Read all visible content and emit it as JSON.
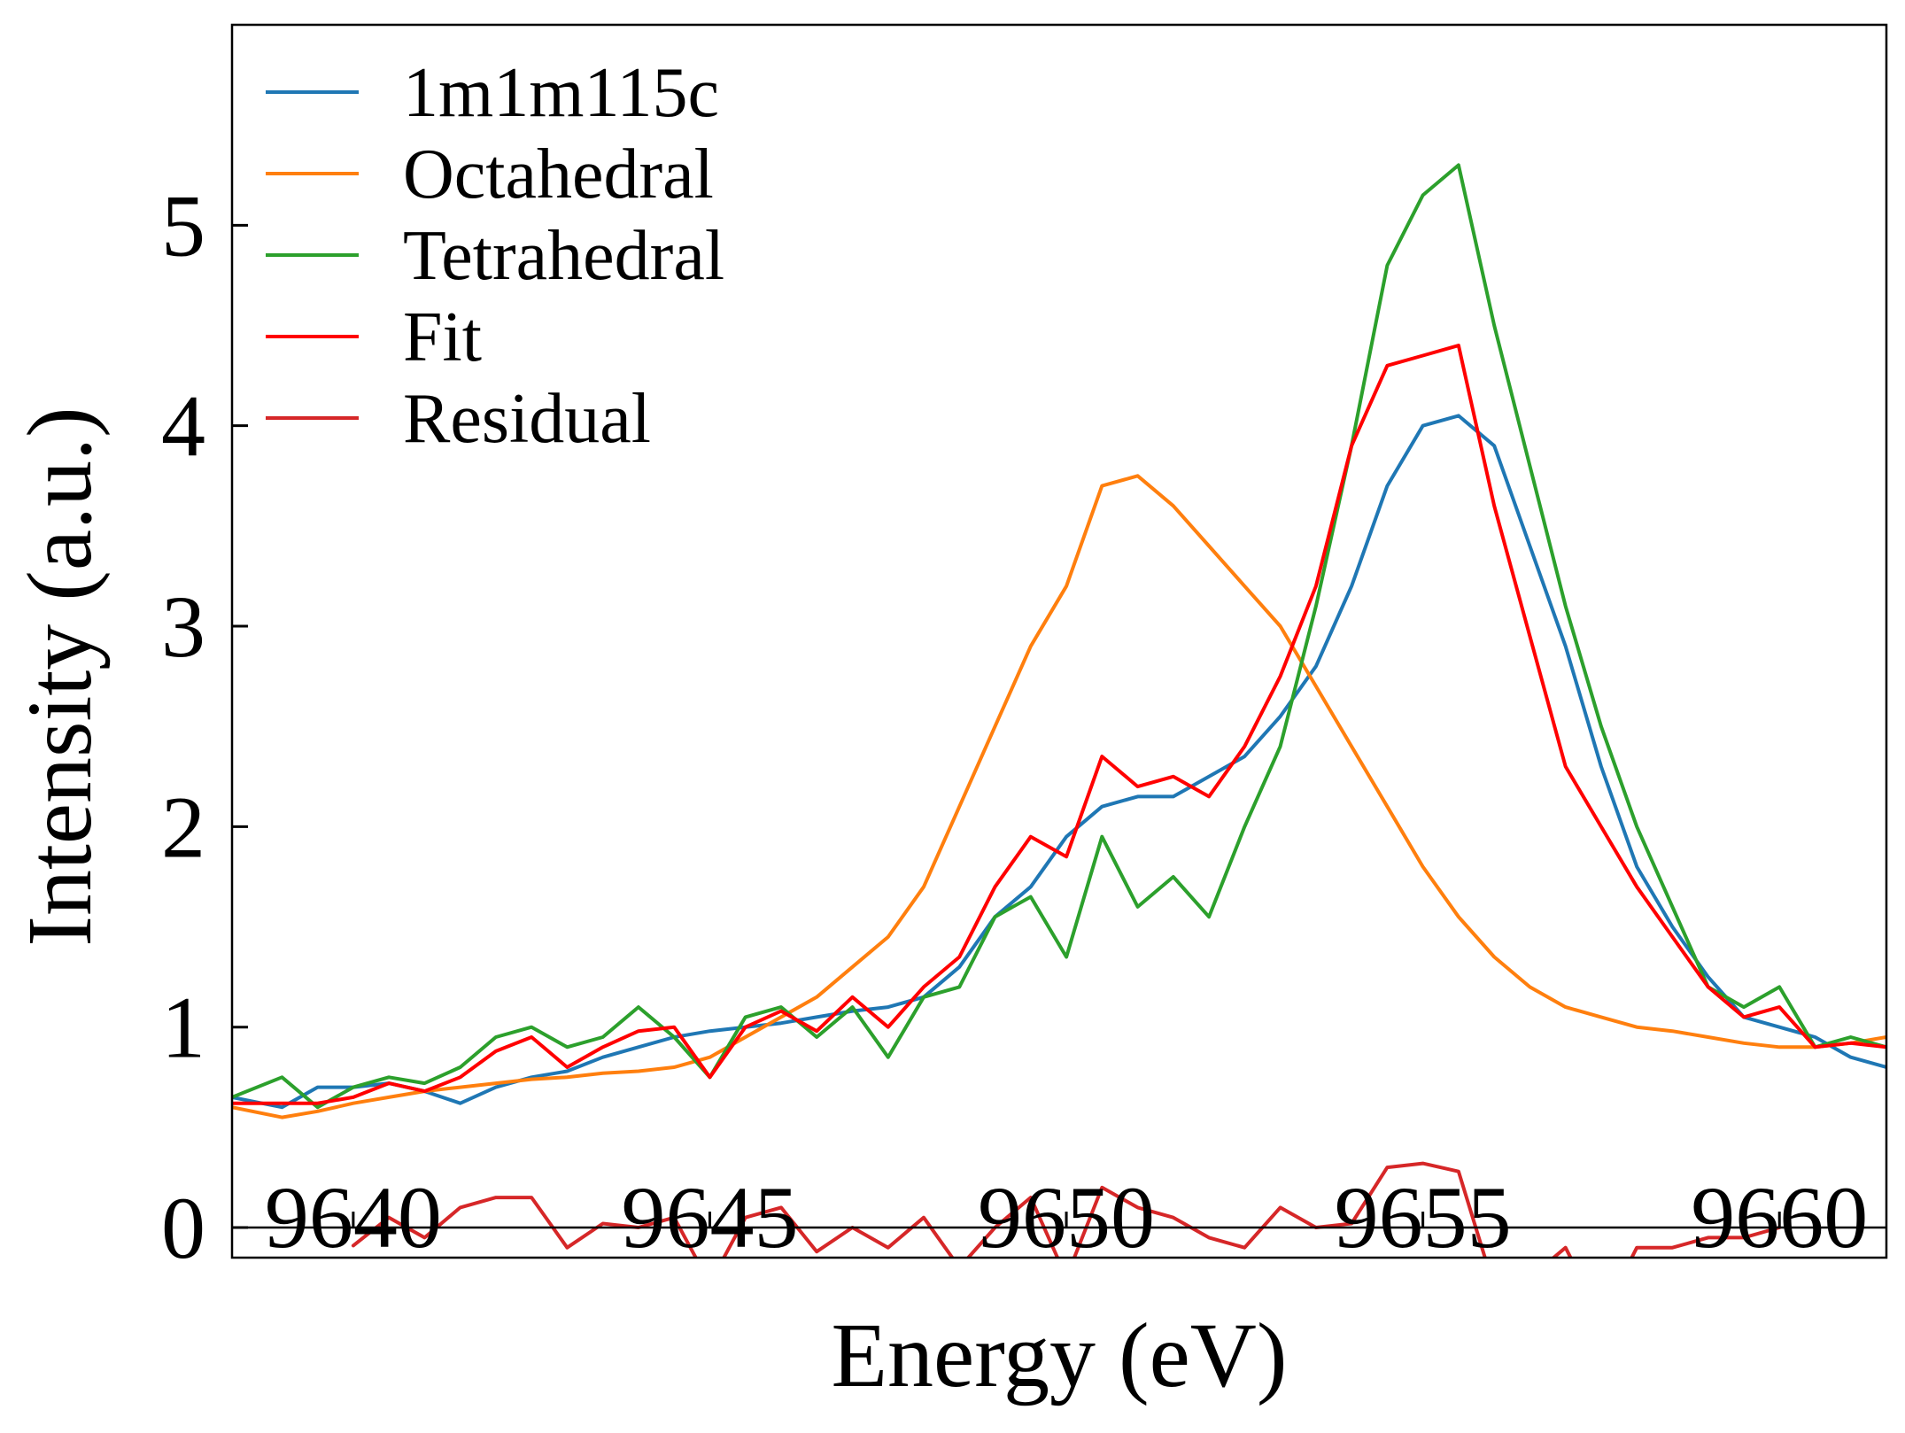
{
  "chart_data": {
    "type": "line",
    "title": "",
    "xlabel": "Energy (eV)",
    "ylabel": "Intensity (a.u.)",
    "xlim": [
      9638.3,
      9661.5
    ],
    "ylim": [
      -0.15,
      6.0
    ],
    "xticks": [
      9640,
      9645,
      9650,
      9655,
      9660
    ],
    "yticks": [
      0,
      1,
      2,
      3,
      4,
      5
    ],
    "grid": false,
    "legend_position": "top-left",
    "series": [
      {
        "name": "1m1m115c",
        "color": "#1f77b4",
        "x": [
          9638.3,
          9639,
          9639.5,
          9640,
          9640.5,
          9641,
          9641.5,
          9642,
          9642.5,
          9643,
          9643.5,
          9644,
          9644.5,
          9645,
          9645.5,
          9646,
          9646.5,
          9647,
          9647.5,
          9648,
          9648.5,
          9649,
          9649.5,
          9650,
          9650.5,
          9651,
          9651.5,
          9652,
          9652.5,
          9653,
          9653.5,
          9654,
          9654.5,
          9655,
          9655.5,
          9656,
          9656.5,
          9657,
          9657.5,
          9658,
          9658.5,
          9659,
          9659.5,
          9660,
          9660.5,
          9661,
          9661.5
        ],
        "y": [
          0.65,
          0.6,
          0.7,
          0.7,
          0.72,
          0.68,
          0.62,
          0.7,
          0.75,
          0.78,
          0.85,
          0.9,
          0.95,
          0.98,
          1.0,
          1.02,
          1.05,
          1.08,
          1.1,
          1.15,
          1.3,
          1.55,
          1.7,
          1.95,
          2.1,
          2.15,
          2.15,
          2.25,
          2.35,
          2.55,
          2.8,
          3.2,
          3.7,
          4.0,
          4.05,
          3.9,
          3.4,
          2.9,
          2.3,
          1.8,
          1.5,
          1.25,
          1.05,
          1.0,
          0.95,
          0.85,
          0.8
        ]
      },
      {
        "name": "Octahedral",
        "color": "#ff7f0e",
        "x": [
          9638.3,
          9639,
          9639.5,
          9640,
          9640.5,
          9641,
          9641.5,
          9642,
          9642.5,
          9643,
          9643.5,
          9644,
          9644.5,
          9645,
          9645.5,
          9646,
          9646.5,
          9647,
          9647.5,
          9648,
          9648.5,
          9649,
          9649.5,
          9650,
          9650.5,
          9651,
          9651.5,
          9652,
          9652.5,
          9653,
          9653.5,
          9654,
          9654.5,
          9655,
          9655.5,
          9656,
          9656.5,
          9657,
          9657.5,
          9658,
          9658.5,
          9659,
          9659.5,
          9660,
          9660.5,
          9661,
          9661.5
        ],
        "y": [
          0.6,
          0.55,
          0.58,
          0.62,
          0.65,
          0.68,
          0.7,
          0.72,
          0.74,
          0.75,
          0.77,
          0.78,
          0.8,
          0.85,
          0.95,
          1.05,
          1.15,
          1.3,
          1.45,
          1.7,
          2.1,
          2.5,
          2.9,
          3.2,
          3.7,
          3.75,
          3.6,
          3.4,
          3.2,
          3.0,
          2.7,
          2.4,
          2.1,
          1.8,
          1.55,
          1.35,
          1.2,
          1.1,
          1.05,
          1.0,
          0.98,
          0.95,
          0.92,
          0.9,
          0.9,
          0.92,
          0.95
        ]
      },
      {
        "name": "Tetrahedral",
        "color": "#2ca02c",
        "x": [
          9638.3,
          9639,
          9639.5,
          9640,
          9640.5,
          9641,
          9641.5,
          9642,
          9642.5,
          9643,
          9643.5,
          9644,
          9644.5,
          9645,
          9645.5,
          9646,
          9646.5,
          9647,
          9647.5,
          9648,
          9648.5,
          9649,
          9649.5,
          9650,
          9650.5,
          9651,
          9651.5,
          9652,
          9652.5,
          9653,
          9653.5,
          9654,
          9654.5,
          9655,
          9655.5,
          9656,
          9656.5,
          9657,
          9657.5,
          9658,
          9658.5,
          9659,
          9659.5,
          9660,
          9660.5,
          9661,
          9661.5
        ],
        "y": [
          0.65,
          0.75,
          0.6,
          0.7,
          0.75,
          0.72,
          0.8,
          0.95,
          1.0,
          0.9,
          0.95,
          1.1,
          0.95,
          0.75,
          1.05,
          1.1,
          0.95,
          1.1,
          0.85,
          1.15,
          1.2,
          1.55,
          1.65,
          1.35,
          1.95,
          1.6,
          1.75,
          1.55,
          2.0,
          2.4,
          3.1,
          3.9,
          4.8,
          5.15,
          5.3,
          4.5,
          3.8,
          3.1,
          2.5,
          2.0,
          1.6,
          1.2,
          1.1,
          1.2,
          0.9,
          0.95,
          0.9
        ]
      },
      {
        "name": "Fit",
        "color": "#ff0000",
        "x": [
          9638.3,
          9639,
          9639.5,
          9640,
          9640.5,
          9641,
          9641.5,
          9642,
          9642.5,
          9643,
          9643.5,
          9644,
          9644.5,
          9645,
          9645.5,
          9646,
          9646.5,
          9647,
          9647.5,
          9648,
          9648.5,
          9649,
          9649.5,
          9650,
          9650.5,
          9651,
          9651.5,
          9652,
          9652.5,
          9653,
          9653.5,
          9654,
          9654.5,
          9655,
          9655.5,
          9656,
          9656.5,
          9657,
          9657.5,
          9658,
          9658.5,
          9659,
          9659.5,
          9660,
          9660.5,
          9661,
          9661.5
        ],
        "y": [
          0.62,
          0.62,
          0.62,
          0.65,
          0.72,
          0.68,
          0.75,
          0.88,
          0.95,
          0.8,
          0.9,
          0.98,
          1.0,
          0.75,
          1.0,
          1.08,
          0.98,
          1.15,
          1.0,
          1.2,
          1.35,
          1.7,
          1.95,
          1.85,
          2.35,
          2.2,
          2.25,
          2.15,
          2.4,
          2.75,
          3.2,
          3.9,
          4.3,
          4.35,
          4.4,
          3.6,
          2.95,
          2.3,
          2.0,
          1.7,
          1.45,
          1.2,
          1.05,
          1.1,
          0.9,
          0.92,
          0.9
        ]
      },
      {
        "name": "Residual",
        "color": "#d62728",
        "x": [
          9640,
          9640.5,
          9641,
          9641.5,
          9642,
          9642.5,
          9643,
          9643.5,
          9644,
          9644.5,
          9645,
          9645.5,
          9646,
          9646.5,
          9647,
          9647.5,
          9648,
          9648.5,
          9649,
          9649.5,
          9650,
          9650.5,
          9651,
          9651.5,
          9652,
          9652.5,
          9653,
          9653.5,
          9654,
          9654.5,
          9655,
          9655.5,
          9656,
          9656.5,
          9657,
          9657.5,
          9658,
          9658.5,
          9659,
          9659.5,
          9660
        ],
        "y": [
          -0.09,
          0.05,
          -0.05,
          0.1,
          0.15,
          0.15,
          -0.1,
          0.02,
          0.0,
          0.05,
          -0.28,
          0.05,
          0.1,
          -0.12,
          0.0,
          -0.1,
          0.05,
          -0.2,
          0.0,
          0.15,
          -0.25,
          0.2,
          0.1,
          0.05,
          -0.05,
          -0.1,
          0.1,
          0.0,
          0.02,
          0.3,
          0.32,
          0.28,
          -0.3,
          -0.25,
          -0.1,
          -0.45,
          -0.1,
          -0.1,
          -0.05,
          -0.05,
          0.0
        ]
      }
    ]
  }
}
